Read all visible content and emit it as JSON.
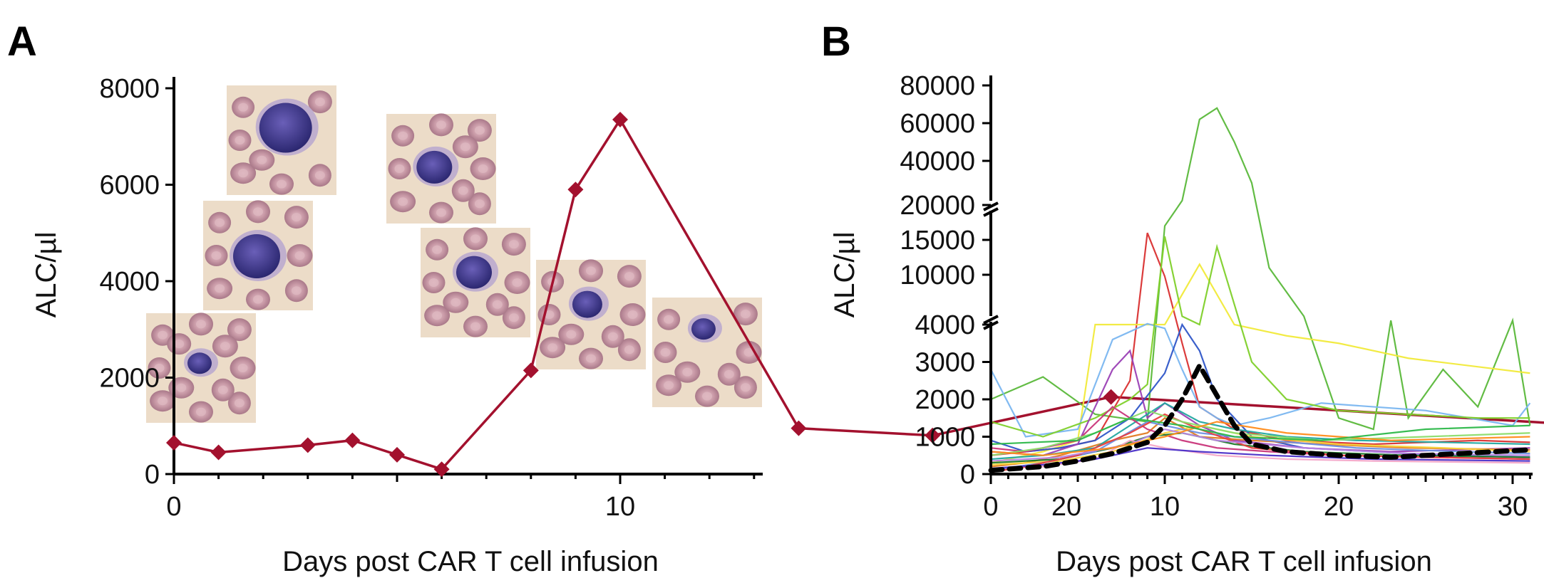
{
  "chart_data": [
    {
      "panel_label": "A",
      "type": "line",
      "xlabel": "Days post CAR T cell infusion",
      "ylabel": "ALC/µl",
      "xlim": [
        0,
        32
      ],
      "ylim": [
        0,
        8000
      ],
      "x_ticks": [
        0,
        10,
        20,
        30
      ],
      "y_ticks": [
        0,
        2000,
        4000,
        6000,
        8000
      ],
      "grid": false,
      "series": [
        {
          "name": "ALC",
          "color": "#a3112e",
          "marker": "diamond",
          "x": [
            0,
            1,
            3,
            4,
            5,
            6,
            8,
            9,
            10,
            14,
            17,
            21,
            31
          ],
          "y": [
            650,
            450,
            600,
            700,
            400,
            100,
            2150,
            5900,
            7350,
            950,
            800,
            1600,
            1050
          ]
        }
      ],
      "annotations": "7 microscopy images of lymphocytes in blood smears placed along the curve"
    },
    {
      "panel_label": "B",
      "type": "line",
      "xlabel": "Days post CAR T cell infusion",
      "ylabel": "ALC/µl",
      "xlim": [
        0,
        31
      ],
      "y_axis_segments": [
        {
          "range": [
            0,
            4000
          ],
          "ticks": [
            0,
            1000,
            2000,
            3000,
            4000
          ]
        },
        {
          "range": [
            10000,
            20000
          ],
          "ticks": [
            10000,
            15000,
            20000
          ]
        },
        {
          "range": [
            40000,
            80000
          ],
          "ticks": [
            40000,
            60000,
            80000
          ]
        }
      ],
      "x_ticks": [
        0,
        10,
        20,
        30
      ],
      "grid": false,
      "series": [
        {
          "name": "median",
          "color": "#000000",
          "style": "dashed",
          "x": [
            0,
            3,
            5,
            7,
            9,
            10,
            11,
            12,
            13,
            14,
            15,
            17,
            20,
            23,
            27,
            31
          ],
          "y": [
            100,
            200,
            350,
            550,
            850,
            1300,
            2000,
            2900,
            2100,
            1300,
            800,
            600,
            500,
            450,
            550,
            650
          ]
        },
        {
          "name": "patient-1",
          "color": "#5ab83a",
          "x": [
            0,
            3,
            6,
            9,
            10,
            11,
            12,
            13,
            14,
            15,
            16,
            18,
            20,
            22,
            23,
            24,
            26,
            28,
            30,
            31
          ],
          "y": [
            2000,
            2600,
            1600,
            1400,
            17000,
            22000,
            62000,
            68000,
            50000,
            30000,
            11000,
            5000,
            1500,
            1200,
            4500,
            1500,
            2800,
            1800,
            4500,
            1300
          ]
        },
        {
          "name": "patient-2",
          "color": "#d93030",
          "x": [
            0,
            4,
            6,
            8,
            9,
            10,
            11,
            12,
            14,
            17,
            22,
            28,
            31
          ],
          "y": [
            500,
            700,
            900,
            2500,
            16000,
            9800,
            3500,
            1800,
            1200,
            900,
            800,
            900,
            850
          ]
        },
        {
          "name": "patient-3",
          "color": "#f1ea3a",
          "x": [
            0,
            3,
            5,
            6,
            10,
            12,
            14,
            17,
            20,
            24,
            31
          ],
          "y": [
            300,
            600,
            900,
            4000,
            4000,
            11500,
            4000,
            3700,
            3500,
            3100,
            2700
          ]
        },
        {
          "name": "patient-4",
          "color": "#7ab6f0",
          "x": [
            0,
            2,
            5,
            7,
            9,
            10,
            11,
            12,
            13,
            14,
            16,
            19,
            25,
            30,
            31
          ],
          "y": [
            2800,
            1000,
            1200,
            3600,
            4100,
            3900,
            2800,
            1800,
            1500,
            1300,
            1500,
            1900,
            1700,
            1300,
            1900
          ]
        },
        {
          "name": "patient-5",
          "color": "#2f56c8",
          "x": [
            0,
            2,
            4,
            6,
            8,
            10,
            11,
            12,
            13,
            15,
            18,
            22,
            26,
            31
          ],
          "y": [
            900,
            600,
            700,
            900,
            1500,
            2700,
            4000,
            3300,
            2000,
            1000,
            700,
            600,
            500,
            450
          ]
        },
        {
          "name": "patient-6",
          "color": "#7fd02b",
          "x": [
            0,
            3,
            6,
            8,
            9,
            10,
            11,
            12,
            13,
            15,
            17,
            20,
            24,
            28,
            31
          ],
          "y": [
            1400,
            1000,
            1500,
            2000,
            2400,
            15500,
            5000,
            4000,
            14000,
            3000,
            2000,
            1700,
            1600,
            1500,
            1500
          ]
        },
        {
          "name": "patient-7",
          "color": "#9b40b5",
          "x": [
            0,
            3,
            5,
            7,
            8,
            9,
            10,
            12,
            14,
            18,
            23,
            31
          ],
          "y": [
            600,
            500,
            800,
            2800,
            3300,
            1500,
            1900,
            1300,
            900,
            700,
            600,
            700
          ]
        },
        {
          "name": "patient-8",
          "color": "#e07b22",
          "x": [
            0,
            2,
            4,
            7,
            9,
            10,
            12,
            15,
            19,
            24,
            31
          ],
          "y": [
            200,
            300,
            500,
            900,
            1100,
            1500,
            1000,
            900,
            800,
            700,
            650
          ]
        },
        {
          "name": "patient-9",
          "color": "#22a6a0",
          "x": [
            0,
            3,
            6,
            8,
            10,
            12,
            14,
            17,
            21,
            26,
            31
          ],
          "y": [
            400,
            500,
            700,
            1300,
            1900,
            1400,
            1200,
            1000,
            900,
            850,
            800
          ]
        },
        {
          "name": "patient-10",
          "color": "#c9357a",
          "x": [
            0,
            2,
            5,
            7,
            9,
            11,
            13,
            16,
            20,
            25,
            31
          ],
          "y": [
            700,
            600,
            900,
            1800,
            1200,
            900,
            700,
            600,
            500,
            450,
            400
          ]
        },
        {
          "name": "patient-11",
          "color": "#1f7a2b",
          "x": [
            0,
            4,
            7,
            9,
            11,
            14,
            18,
            24,
            31
          ],
          "y": [
            300,
            400,
            700,
            1000,
            1100,
            800,
            600,
            500,
            450
          ]
        },
        {
          "name": "patient-12",
          "color": "#f3a6c8",
          "x": [
            0,
            3,
            6,
            8,
            10,
            13,
            17,
            22,
            31
          ],
          "y": [
            150,
            200,
            400,
            900,
            700,
            500,
            400,
            350,
            300
          ]
        },
        {
          "name": "patient-13",
          "color": "#f7d23a",
          "x": [
            0,
            4,
            7,
            10,
            12,
            15,
            20,
            26,
            31
          ],
          "y": [
            250,
            350,
            600,
            1100,
            1300,
            1000,
            800,
            700,
            600
          ]
        },
        {
          "name": "patient-14",
          "color": "#6b8fe0",
          "x": [
            0,
            3,
            6,
            9,
            12,
            16,
            21,
            27,
            31
          ],
          "y": [
            100,
            300,
            600,
            1400,
            1100,
            900,
            700,
            600,
            550
          ]
        },
        {
          "name": "patient-15",
          "color": "#e83e3e",
          "x": [
            0,
            2,
            5,
            8,
            10,
            12,
            15,
            20,
            31
          ],
          "y": [
            50,
            200,
            500,
            1100,
            1600,
            1200,
            700,
            500,
            400
          ]
        },
        {
          "name": "patient-16",
          "color": "#8bdc6a",
          "x": [
            0,
            3,
            6,
            9,
            11,
            14,
            19,
            25,
            31
          ],
          "y": [
            500,
            700,
            1100,
            1700,
            1400,
            1100,
            900,
            1000,
            1100
          ]
        },
        {
          "name": "patient-17",
          "color": "#b784e0",
          "x": [
            0,
            4,
            8,
            10,
            13,
            18,
            24,
            31
          ],
          "y": [
            350,
            450,
            800,
            1200,
            900,
            700,
            550,
            500
          ]
        },
        {
          "name": "patient-18",
          "color": "#ff8c1a",
          "x": [
            0,
            3,
            7,
            10,
            13,
            17,
            23,
            31
          ],
          "y": [
            600,
            500,
            700,
            1000,
            1400,
            1100,
            900,
            1000
          ]
        },
        {
          "name": "patient-19",
          "color": "#2db84a",
          "x": [
            0,
            5,
            8,
            11,
            14,
            19,
            25,
            31
          ],
          "y": [
            800,
            900,
            1500,
            1300,
            1000,
            900,
            1200,
            1300
          ]
        },
        {
          "name": "patient-20",
          "color": "#4a2fc8",
          "x": [
            0,
            3,
            6,
            9,
            12,
            16,
            22,
            31
          ],
          "y": [
            150,
            250,
            400,
            700,
            600,
            500,
            400,
            350
          ]
        }
      ]
    }
  ]
}
